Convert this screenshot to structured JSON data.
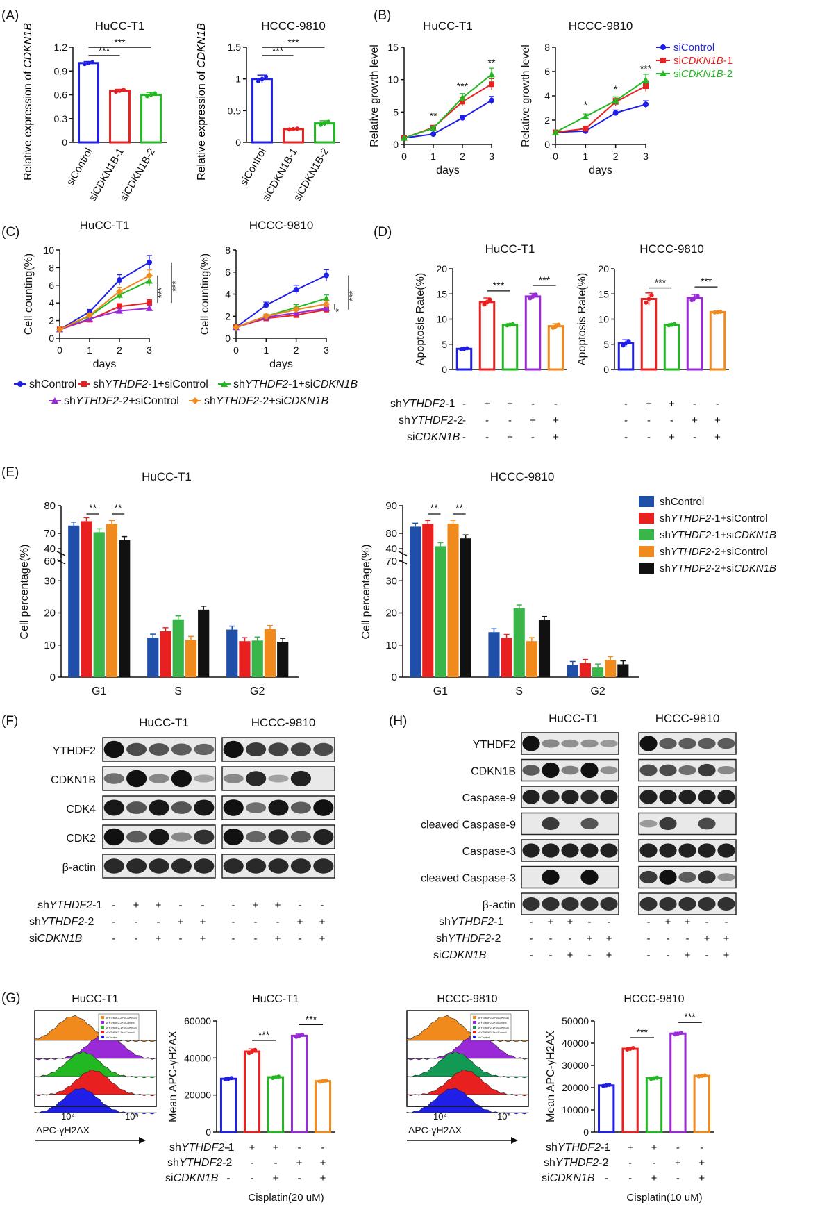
{
  "colors": {
    "blue": "#1f1fe8",
    "red": "#e82020",
    "green": "#22b822",
    "purple": "#9a2ad8",
    "orange": "#f08a1c",
    "darkblue": "#1f4fa8",
    "black": "#111111",
    "lightgreen": "#39b54a"
  },
  "panels": {
    "A": {
      "label": "(A)",
      "ylabel_pre": "Relative expression of ",
      "ylabel_gene": "CDKN1B",
      "categories": [
        "siControl",
        "siCDKN1B-1",
        "siCDKN1B-2"
      ],
      "sig": [
        "***",
        "***"
      ]
    },
    "B": {
      "label": "(B)",
      "ylabel": "Relative growth level",
      "xlabel": "days",
      "legend": [
        {
          "pre": "si",
          "gene": "Control",
          "plain": true
        },
        {
          "pre": "si",
          "gene": "CDKN1B",
          "suf": "-1"
        },
        {
          "pre": "si",
          "gene": "CDKN1B",
          "suf": "-2"
        }
      ]
    },
    "C": {
      "label": "(C)",
      "ylabel": "Cell counting(%)",
      "xlabel": "days",
      "legend": [
        "shControl",
        "shYTHDF2-1+siControl",
        "shYTHDF2-1+siCDKN1B",
        "shYTHDF2-2+siControl",
        "shYTHDF2-2+siCDKN1B"
      ]
    },
    "D": {
      "label": "(D)",
      "ylabel": "Apoptosis Rate(%)",
      "rows": [
        {
          "label": "shYTHDF2-1",
          "signs": [
            "-",
            "+",
            "+",
            "-",
            "-"
          ]
        },
        {
          "label": "shYTHDF2-2",
          "signs": [
            "-",
            "-",
            "-",
            "+",
            "+"
          ]
        },
        {
          "label": "siCDKN1B",
          "signs": [
            "-",
            "-",
            "+",
            "-",
            "+"
          ]
        }
      ]
    },
    "E": {
      "label": "(E)",
      "ylabel": "Cell percentage(%)",
      "phases": [
        "G1",
        "S",
        "G2"
      ],
      "legend": [
        "shControl",
        "shYTHDF2-1+siControl",
        "shYTHDF2-1+siCDKN1B",
        "shYTHDF2-2+siControl",
        "shYTHDF2-2+siCDKN1B"
      ]
    },
    "F": {
      "label": "(F)",
      "bands": [
        "YTHDF2",
        "CDKN1B",
        "CDK4",
        "CDK2",
        "β-actin"
      ],
      "rows": [
        {
          "label": "shYTHDF2-1",
          "signs": [
            "-",
            "+",
            "+",
            "-",
            "-"
          ]
        },
        {
          "label": "shYTHDF2-2",
          "signs": [
            "-",
            "-",
            "-",
            "+",
            "+"
          ]
        },
        {
          "label": "siCDKN1B",
          "signs": [
            "-",
            "-",
            "+",
            "-",
            "+"
          ]
        }
      ]
    },
    "H": {
      "label": "(H)",
      "bands": [
        "YTHDF2",
        "CDKN1B",
        "Caspase-9",
        "cleaved Caspase-9",
        "Caspase-3",
        "cleaved Caspase-3",
        "β-actin"
      ]
    },
    "G": {
      "label": "(G)",
      "flow_xlabel": "APC-γH2AX",
      "flow_ticks": [
        "10⁴",
        "10⁵"
      ],
      "flow_legend": [
        "shYTHDF2-2+siCDKN1B",
        "shYTHDF2-2+siControl",
        "shYTHDF2-1+siCDKN1B",
        "shYTHDF2-1+siControl",
        "shControl"
      ],
      "ylabel": "Mean APC-γH2AX",
      "cisplatin_left": "Cisplatin(20 uM)",
      "cisplatin_right": "Cisplatin(10 uM)"
    }
  },
  "cell_lines": [
    "HuCC-T1",
    "HCCC-9810"
  ],
  "chart_data": [
    {
      "type": "bar",
      "panel": "A",
      "title": "HuCC-T1",
      "ylabel": "Relative expression of CDKN1B",
      "categories": [
        "siControl",
        "siCDKN1B-1",
        "siCDKN1B-2"
      ],
      "values": [
        1.0,
        0.65,
        0.6
      ],
      "errors": [
        0.02,
        0.02,
        0.03
      ],
      "ylim": [
        0,
        1.2
      ],
      "yticks": [
        0,
        0.3,
        0.6,
        0.9,
        1.2
      ]
    },
    {
      "type": "bar",
      "panel": "A",
      "title": "HCCC-9810",
      "ylabel": "Relative expression of CDKN1B",
      "categories": [
        "siControl",
        "siCDKN1B-1",
        "siCDKN1B-2"
      ],
      "values": [
        1.0,
        0.21,
        0.3
      ],
      "errors": [
        0.06,
        0.01,
        0.04
      ],
      "ylim": [
        0,
        1.5
      ],
      "yticks": [
        0,
        0.5,
        1.0,
        1.5
      ]
    },
    {
      "type": "line",
      "panel": "B",
      "title": "HuCC-T1",
      "xlabel": "days",
      "ylabel": "Relative growth level",
      "x": [
        0,
        1,
        2,
        3
      ],
      "ylim": [
        0,
        15
      ],
      "yticks": [
        0,
        5,
        10,
        15
      ],
      "series": [
        {
          "name": "siControl",
          "values": [
            1.0,
            1.6,
            4.1,
            6.8
          ]
        },
        {
          "name": "siCDKN1B-1",
          "values": [
            1.0,
            2.6,
            6.6,
            9.3
          ]
        },
        {
          "name": "siCDKN1B-2",
          "values": [
            1.0,
            2.5,
            7.2,
            10.8
          ]
        }
      ],
      "annotations": [
        "**",
        "***",
        "**"
      ]
    },
    {
      "type": "line",
      "panel": "B",
      "title": "HCCC-9810",
      "xlabel": "days",
      "ylabel": "Relative growth level",
      "x": [
        0,
        1,
        2,
        3
      ],
      "ylim": [
        0,
        8
      ],
      "yticks": [
        0,
        2,
        4,
        6,
        8
      ],
      "series": [
        {
          "name": "siControl",
          "values": [
            1.0,
            1.1,
            2.6,
            3.3
          ]
        },
        {
          "name": "siCDKN1B-1",
          "values": [
            1.0,
            1.3,
            3.5,
            4.8
          ]
        },
        {
          "name": "siCDKN1B-2",
          "values": [
            1.0,
            2.3,
            3.6,
            5.3
          ]
        }
      ],
      "annotations": [
        "*",
        "*",
        "***"
      ]
    },
    {
      "type": "line",
      "panel": "C",
      "title": "HuCC-T1",
      "xlabel": "days",
      "ylabel": "Cell counting(%)",
      "x": [
        0,
        1,
        2,
        3
      ],
      "ylim": [
        0,
        10
      ],
      "yticks": [
        0,
        2,
        4,
        6,
        8,
        10
      ],
      "series": [
        {
          "name": "shControl",
          "values": [
            1.0,
            3.0,
            6.6,
            8.6
          ]
        },
        {
          "name": "shYTHDF2-1+siControl",
          "values": [
            1.0,
            2.1,
            3.6,
            4.0
          ]
        },
        {
          "name": "shYTHDF2-1+siCDKN1B",
          "values": [
            1.0,
            2.5,
            4.9,
            6.5
          ]
        },
        {
          "name": "shYTHDF2-2+siControl",
          "values": [
            1.0,
            2.2,
            3.1,
            3.4
          ]
        },
        {
          "name": "shYTHDF2-2+siCDKN1B",
          "values": [
            1.0,
            2.6,
            5.3,
            7.1
          ]
        }
      ],
      "annotations": [
        "***",
        "***"
      ]
    },
    {
      "type": "line",
      "panel": "C",
      "title": "HCCC-9810",
      "xlabel": "days",
      "ylabel": "Cell counting(%)",
      "x": [
        0,
        1,
        2,
        3
      ],
      "ylim": [
        0,
        8
      ],
      "yticks": [
        0,
        2,
        4,
        6,
        8
      ],
      "series": [
        {
          "name": "shControl",
          "values": [
            1.0,
            3.0,
            4.4,
            5.7
          ]
        },
        {
          "name": "shYTHDF2-1+siControl",
          "values": [
            1.0,
            1.8,
            2.1,
            2.6
          ]
        },
        {
          "name": "shYTHDF2-1+siCDKN1B",
          "values": [
            1.0,
            2.0,
            2.8,
            3.6
          ]
        },
        {
          "name": "shYTHDF2-2+siControl",
          "values": [
            1.0,
            1.9,
            2.3,
            2.7
          ]
        },
        {
          "name": "shYTHDF2-2+siCDKN1B",
          "values": [
            1.0,
            2.0,
            2.6,
            3.1
          ]
        }
      ],
      "annotations": [
        "*",
        "***"
      ]
    },
    {
      "type": "bar",
      "panel": "D",
      "title": "HuCC-T1",
      "ylabel": "Apoptosis Rate(%)",
      "values": [
        4.1,
        13.4,
        8.9,
        14.5,
        8.6
      ],
      "errors": [
        0.2,
        0.8,
        0.2,
        0.6,
        0.5
      ],
      "ylim": [
        0,
        20
      ],
      "yticks": [
        0,
        5,
        10,
        15,
        20
      ],
      "annotations": [
        "***",
        "***"
      ]
    },
    {
      "type": "bar",
      "panel": "D",
      "title": "HCCC-9810",
      "ylabel": "Apoptosis Rate(%)",
      "values": [
        5.2,
        14.0,
        8.9,
        14.2,
        11.4
      ],
      "errors": [
        0.7,
        1.2,
        0.2,
        0.7,
        0.1
      ],
      "ylim": [
        0,
        20
      ],
      "yticks": [
        0,
        5,
        10,
        15,
        20
      ],
      "annotations": [
        "***",
        "***"
      ]
    },
    {
      "type": "bar",
      "panel": "E",
      "title": "HuCC-T1",
      "ylabel": "Cell percentage(%)",
      "categories": [
        "G1",
        "S",
        "G2"
      ],
      "series": [
        {
          "name": "shControl",
          "values": [
            72.8,
            12.3,
            14.8
          ]
        },
        {
          "name": "shYTHDF2-1+siControl",
          "values": [
            74.4,
            14.3,
            11.2
          ]
        },
        {
          "name": "shYTHDF2-1+siCDKN1B",
          "values": [
            70.4,
            18.0,
            11.4
          ]
        },
        {
          "name": "shYTHDF2-2+siControl",
          "values": [
            73.4,
            11.6,
            15.0
          ]
        },
        {
          "name": "shYTHDF2-2+siCDKN1B",
          "values": [
            67.6,
            21.0,
            11.0
          ]
        }
      ],
      "yticks_low": [
        0,
        10,
        20,
        30,
        40
      ],
      "yticks_high": [
        60,
        70,
        80
      ],
      "annotations": [
        "**",
        "**"
      ]
    },
    {
      "type": "bar",
      "panel": "E",
      "title": "HCCC-9810",
      "ylabel": "Cell percentage(%)",
      "categories": [
        "G1",
        "S",
        "G2"
      ],
      "series": [
        {
          "name": "shControl",
          "values": [
            82.4,
            14.0,
            3.8
          ]
        },
        {
          "name": "shYTHDF2-1+siControl",
          "values": [
            83.4,
            12.2,
            4.4
          ]
        },
        {
          "name": "shYTHDF2-1+siCDKN1B",
          "values": [
            75.4,
            21.4,
            3.0
          ]
        },
        {
          "name": "shYTHDF2-2+siControl",
          "values": [
            83.5,
            11.2,
            5.3
          ]
        },
        {
          "name": "shYTHDF2-2+siCDKN1B",
          "values": [
            78.2,
            17.8,
            4.0
          ]
        }
      ],
      "yticks_low": [
        0,
        10,
        20,
        30,
        40
      ],
      "yticks_high": [
        70,
        80,
        90
      ],
      "annotations": [
        "**",
        "**"
      ]
    },
    {
      "type": "bar",
      "panel": "G",
      "title": "HuCC-T1",
      "ylabel": "Mean APC-γH2AX",
      "values": [
        28800,
        43500,
        29600,
        52000,
        27500
      ],
      "errors": [
        600,
        1400,
        600,
        900,
        500
      ],
      "ylim": [
        0,
        60000
      ],
      "yticks": [
        0,
        20000,
        40000,
        60000
      ],
      "annotations": [
        "***",
        "***"
      ]
    },
    {
      "type": "bar",
      "panel": "G",
      "title": "HCCC-9810",
      "ylabel": "Mean APC-γH2AX",
      "values": [
        21000,
        37500,
        24200,
        44300,
        25300
      ],
      "errors": [
        400,
        500,
        400,
        600,
        300
      ],
      "ylim": [
        0,
        50000
      ],
      "yticks": [
        0,
        10000,
        20000,
        30000,
        40000,
        50000
      ],
      "annotations": [
        "***",
        "***"
      ]
    }
  ]
}
